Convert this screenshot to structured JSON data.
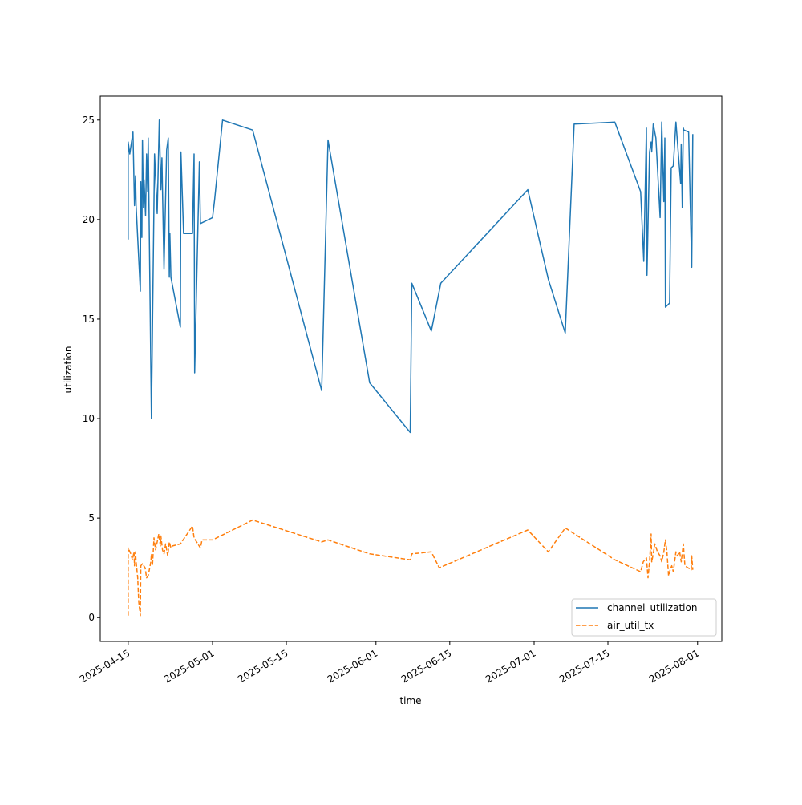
{
  "chart_data": {
    "type": "line",
    "title": "",
    "xlabel": "time",
    "ylabel": "utilization",
    "x_origin": "2025-04-15",
    "x_unit": "days since x_origin",
    "xlim": [
      -5.3,
      112.6
    ],
    "ylim": [
      -1.2,
      26.2
    ],
    "grid": false,
    "legend_placement": "lower-right",
    "xticks": [
      {
        "day": 0,
        "label": "2025-04-15"
      },
      {
        "day": 16,
        "label": "2025-05-01"
      },
      {
        "day": 30,
        "label": "2025-05-15"
      },
      {
        "day": 47,
        "label": "2025-06-01"
      },
      {
        "day": 61,
        "label": "2025-06-15"
      },
      {
        "day": 77,
        "label": "2025-07-01"
      },
      {
        "day": 91,
        "label": "2025-07-15"
      },
      {
        "day": 108,
        "label": "2025-08-01"
      }
    ],
    "yticks": [
      {
        "value": 0,
        "label": "0"
      },
      {
        "value": 5,
        "label": "5"
      },
      {
        "value": 10,
        "label": "10"
      },
      {
        "value": 15,
        "label": "15"
      },
      {
        "value": 20,
        "label": "20"
      },
      {
        "value": 25,
        "label": "25"
      }
    ],
    "series": [
      {
        "name": "channel_utilization",
        "color": "#1f77b4",
        "dash": "solid",
        "points": [
          [
            0,
            19.0
          ],
          [
            0,
            23.9
          ],
          [
            0.3,
            23.3
          ],
          [
            0.9,
            24.4
          ],
          [
            1.2,
            20.7
          ],
          [
            1.4,
            22.2
          ],
          [
            1.5,
            20.7
          ],
          [
            2.3,
            16.4
          ],
          [
            2.4,
            21.9
          ],
          [
            2.6,
            19.1
          ],
          [
            2.7,
            24.0
          ],
          [
            2.9,
            20.6
          ],
          [
            3.0,
            22.0
          ],
          [
            3.3,
            20.2
          ],
          [
            3.5,
            23.3
          ],
          [
            3.7,
            21.4
          ],
          [
            3.8,
            24.1
          ],
          [
            4.4,
            10.0
          ],
          [
            5.0,
            23.3
          ],
          [
            5.5,
            20.3
          ],
          [
            5.9,
            25.0
          ],
          [
            6.2,
            21.5
          ],
          [
            6.4,
            23.1
          ],
          [
            6.5,
            21.5
          ],
          [
            6.8,
            17.5
          ],
          [
            7.3,
            23.5
          ],
          [
            7.6,
            24.1
          ],
          [
            7.8,
            17.1
          ],
          [
            7.9,
            19.3
          ],
          [
            8.1,
            17.1
          ],
          [
            9.9,
            14.6
          ],
          [
            10.0,
            23.4
          ],
          [
            10.5,
            19.3
          ],
          [
            12.2,
            19.3
          ],
          [
            12.5,
            23.3
          ],
          [
            12.6,
            12.3
          ],
          [
            13.5,
            22.9
          ],
          [
            13.7,
            19.8
          ],
          [
            16.0,
            20.1
          ],
          [
            16.4,
            21.0
          ],
          [
            17.9,
            25.0
          ],
          [
            23.6,
            24.5
          ],
          [
            36.7,
            11.4
          ],
          [
            37.9,
            24.0
          ],
          [
            45.8,
            11.8
          ],
          [
            53.5,
            9.3
          ],
          [
            53.8,
            16.8
          ],
          [
            57.5,
            14.4
          ],
          [
            59.3,
            16.8
          ],
          [
            75.8,
            21.5
          ],
          [
            79.7,
            17.0
          ],
          [
            82.9,
            14.3
          ],
          [
            84.6,
            24.8
          ],
          [
            92.3,
            24.9
          ],
          [
            97.2,
            21.4
          ],
          [
            97.8,
            17.9
          ],
          [
            98.3,
            24.6
          ],
          [
            98.4,
            17.2
          ],
          [
            98.9,
            23.4
          ],
          [
            99.2,
            23.9
          ],
          [
            99.3,
            23.4
          ],
          [
            99.6,
            24.8
          ],
          [
            100.1,
            24.1
          ],
          [
            100.9,
            20.1
          ],
          [
            101.2,
            24.9
          ],
          [
            101.6,
            20.9
          ],
          [
            101.8,
            24.1
          ],
          [
            101.9,
            15.6
          ],
          [
            102.7,
            15.8
          ],
          [
            103.0,
            22.6
          ],
          [
            103.4,
            22.7
          ],
          [
            103.9,
            24.9
          ],
          [
            104.8,
            21.8
          ],
          [
            104.9,
            23.8
          ],
          [
            105.1,
            20.6
          ],
          [
            105.3,
            24.6
          ],
          [
            105.4,
            24.5
          ],
          [
            106.3,
            24.4
          ],
          [
            106.9,
            17.6
          ],
          [
            107.1,
            24.3
          ]
        ]
      },
      {
        "name": "air_util_tx",
        "color": "#ff7f0e",
        "dash": "dashed",
        "points": [
          [
            0,
            0.1
          ],
          [
            0,
            3.5
          ],
          [
            0.5,
            3.2
          ],
          [
            0.8,
            2.9
          ],
          [
            1.1,
            3.3
          ],
          [
            1.2,
            2.6
          ],
          [
            1.4,
            3.3
          ],
          [
            1.5,
            2.8
          ],
          [
            1.8,
            2.0
          ],
          [
            2.0,
            0.8
          ],
          [
            2.3,
            0.1
          ],
          [
            2.4,
            2.6
          ],
          [
            2.7,
            2.7
          ],
          [
            3.2,
            2.5
          ],
          [
            3.5,
            2.0
          ],
          [
            3.8,
            2.1
          ],
          [
            4.3,
            2.8
          ],
          [
            4.4,
            3.2
          ],
          [
            4.6,
            2.6
          ],
          [
            4.9,
            4.0
          ],
          [
            5.2,
            3.4
          ],
          [
            5.5,
            3.8
          ],
          [
            5.8,
            4.2
          ],
          [
            6.1,
            3.6
          ],
          [
            6.2,
            4.1
          ],
          [
            6.5,
            3.4
          ],
          [
            6.8,
            3.2
          ],
          [
            7.1,
            3.7
          ],
          [
            7.5,
            3.1
          ],
          [
            7.8,
            3.8
          ],
          [
            8.1,
            3.5
          ],
          [
            8.4,
            3.6
          ],
          [
            9.9,
            3.7
          ],
          [
            12.2,
            4.6
          ],
          [
            12.5,
            4.0
          ],
          [
            13.7,
            3.5
          ],
          [
            14.0,
            3.9
          ],
          [
            16.0,
            3.9
          ],
          [
            23.6,
            4.9
          ],
          [
            36.7,
            3.8
          ],
          [
            37.9,
            3.9
          ],
          [
            45.8,
            3.2
          ],
          [
            53.5,
            2.9
          ],
          [
            53.8,
            3.2
          ],
          [
            57.5,
            3.3
          ],
          [
            59.0,
            2.5
          ],
          [
            75.8,
            4.4
          ],
          [
            79.7,
            3.3
          ],
          [
            82.9,
            4.5
          ],
          [
            92.3,
            2.9
          ],
          [
            97.2,
            2.3
          ],
          [
            97.7,
            2.8
          ],
          [
            98.3,
            3.0
          ],
          [
            98.6,
            2.0
          ],
          [
            98.9,
            2.8
          ],
          [
            99.2,
            4.2
          ],
          [
            99.3,
            2.8
          ],
          [
            99.6,
            3.2
          ],
          [
            99.9,
            3.7
          ],
          [
            100.4,
            3.3
          ],
          [
            100.9,
            3.1
          ],
          [
            101.2,
            2.8
          ],
          [
            101.6,
            3.3
          ],
          [
            101.9,
            3.9
          ],
          [
            102.2,
            3.3
          ],
          [
            102.5,
            2.1
          ],
          [
            102.8,
            2.4
          ],
          [
            103.1,
            2.6
          ],
          [
            103.4,
            2.3
          ],
          [
            103.9,
            3.3
          ],
          [
            104.2,
            3.1
          ],
          [
            104.6,
            3.3
          ],
          [
            104.9,
            2.8
          ],
          [
            105.3,
            3.7
          ],
          [
            105.6,
            2.6
          ],
          [
            106.2,
            2.5
          ],
          [
            106.8,
            2.4
          ],
          [
            106.9,
            3.1
          ],
          [
            107.1,
            2.4
          ]
        ]
      }
    ]
  }
}
